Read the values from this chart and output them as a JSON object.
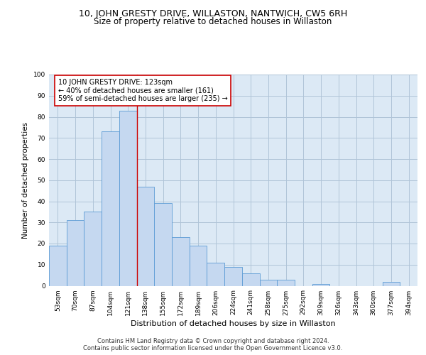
{
  "title": "10, JOHN GRESTY DRIVE, WILLASTON, NANTWICH, CW5 6RH",
  "subtitle": "Size of property relative to detached houses in Willaston",
  "xlabel": "Distribution of detached houses by size in Willaston",
  "ylabel": "Number of detached properties",
  "categories": [
    "53sqm",
    "70sqm",
    "87sqm",
    "104sqm",
    "121sqm",
    "138sqm",
    "155sqm",
    "172sqm",
    "189sqm",
    "206sqm",
    "224sqm",
    "241sqm",
    "258sqm",
    "275sqm",
    "292sqm",
    "309sqm",
    "326sqm",
    "343sqm",
    "360sqm",
    "377sqm",
    "394sqm"
  ],
  "values": [
    19,
    31,
    35,
    73,
    83,
    47,
    39,
    23,
    19,
    11,
    9,
    6,
    3,
    3,
    0,
    1,
    0,
    0,
    0,
    2,
    0
  ],
  "bar_color": "#c5d8f0",
  "bar_edge_color": "#5b9bd5",
  "grid_color": "#b0c4d8",
  "background_color": "#dce9f5",
  "vline_x": 4.5,
  "vline_color": "#cc0000",
  "annotation_text": "10 JOHN GRESTY DRIVE: 123sqm\n← 40% of detached houses are smaller (161)\n59% of semi-detached houses are larger (235) →",
  "annotation_box_color": "#ffffff",
  "annotation_box_edge": "#cc0000",
  "ylim": [
    0,
    100
  ],
  "yticks": [
    0,
    10,
    20,
    30,
    40,
    50,
    60,
    70,
    80,
    90,
    100
  ],
  "footnote": "Contains HM Land Registry data © Crown copyright and database right 2024.\nContains public sector information licensed under the Open Government Licence v3.0.",
  "title_fontsize": 9,
  "subtitle_fontsize": 8.5,
  "xlabel_fontsize": 8,
  "ylabel_fontsize": 7.5,
  "tick_fontsize": 6.5,
  "annotation_fontsize": 7,
  "footnote_fontsize": 6
}
